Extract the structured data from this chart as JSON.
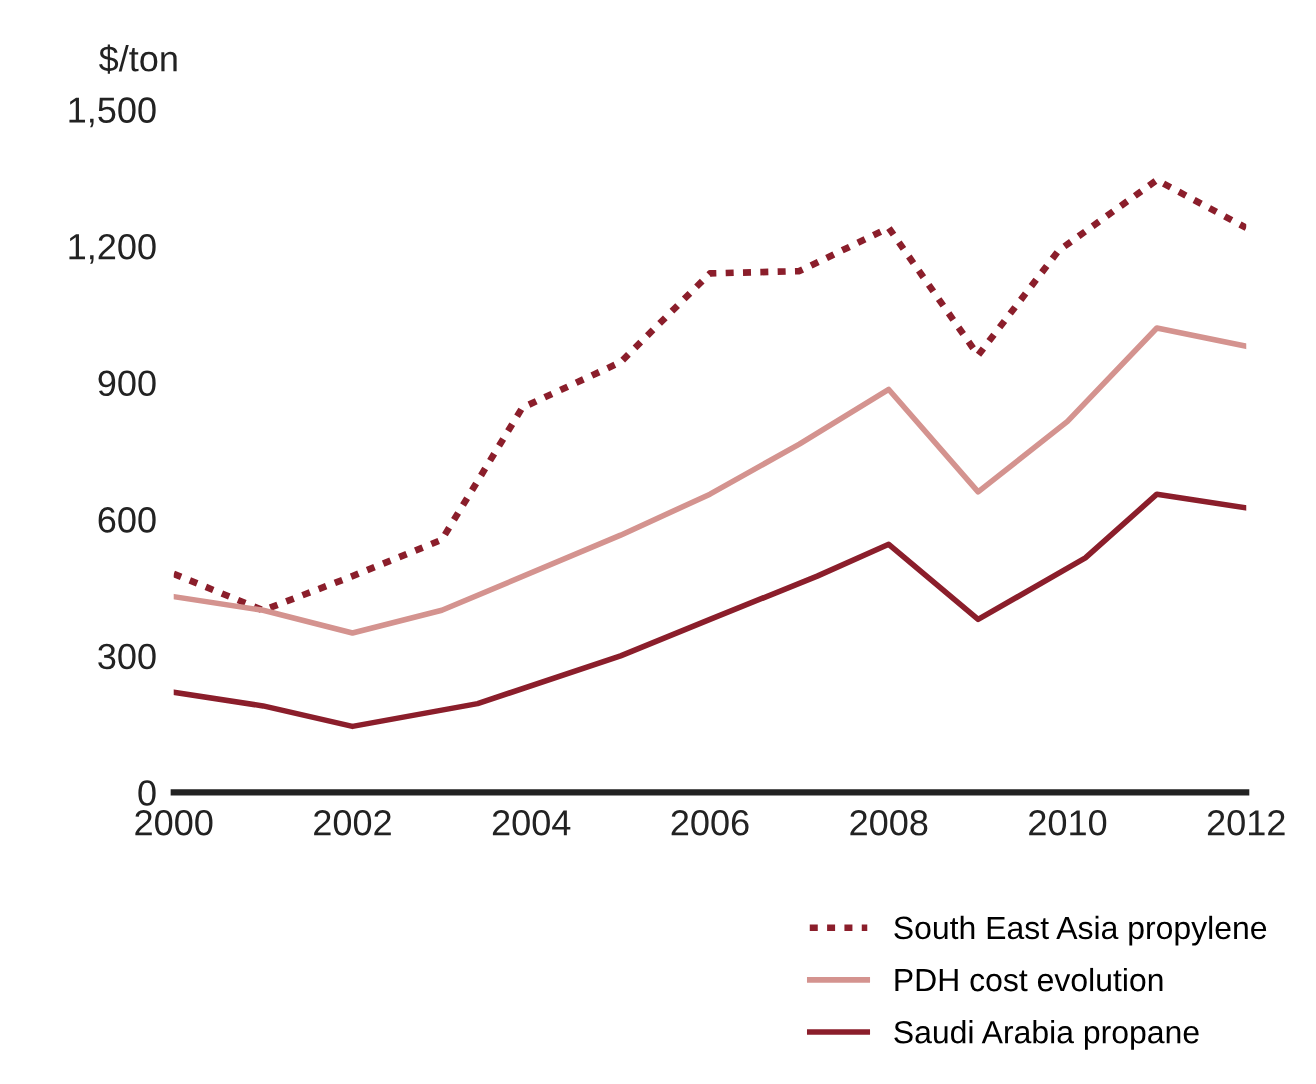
{
  "chart_data": {
    "type": "line",
    "ylabel": "$/ton",
    "xlim": [
      2000,
      2012
    ],
    "xticks": [
      2000,
      2002,
      2004,
      2006,
      2008,
      2010,
      2012
    ],
    "ylim": [
      0,
      1500
    ],
    "yticks": [
      0,
      300,
      600,
      900,
      {
        "value": 1200,
        "label": "1,200"
      },
      {
        "value": 1500,
        "label": "1,500"
      }
    ],
    "grid": false,
    "legend": "bottom right",
    "marker": "none",
    "series": [
      {
        "name": "South East Asia propylene",
        "color": "#8b1e2b",
        "line_style": "dotted",
        "x": [
          2000,
          2001,
          2002,
          2003,
          2003.9,
          2005,
          2006,
          2007,
          2008,
          2009,
          2009.9,
          2011,
          2012
        ],
        "values": [
          480,
          400,
          475,
          555,
          845,
          945,
          1140,
          1145,
          1240,
          960,
          1190,
          1345,
          1240
        ]
      },
      {
        "name": "PDH cost evolution",
        "color": "#d4938f",
        "line_style": "solid",
        "x": [
          2000,
          2001,
          2002,
          2003,
          2005,
          2006,
          2007,
          2008,
          2009,
          2010,
          2011,
          2012
        ],
        "values": [
          430,
          400,
          350,
          400,
          565,
          655,
          765,
          885,
          660,
          815,
          1020,
          980
        ]
      },
      {
        "name": "Saudi Arabia propane",
        "color": "#8b1e2b",
        "line_style": "solid",
        "x": [
          2000,
          2001,
          2002,
          2003.4,
          2005,
          2006,
          2007.2,
          2008,
          2009,
          2010.2,
          2011,
          2012
        ],
        "values": [
          220,
          190,
          145,
          195,
          300,
          380,
          475,
          545,
          380,
          515,
          655,
          625
        ]
      }
    ]
  }
}
